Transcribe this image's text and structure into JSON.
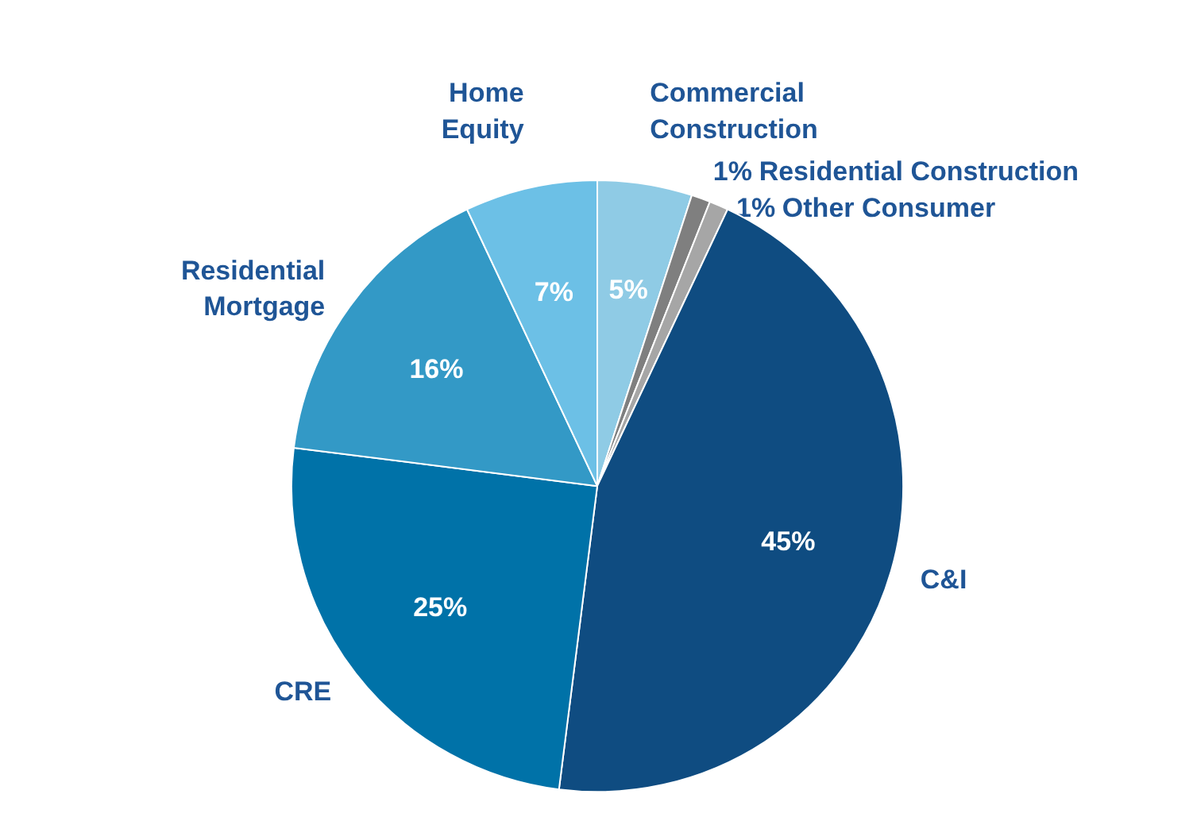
{
  "chart_data": {
    "type": "pie",
    "categories": [
      "Commercial Construction",
      "Residential Construction",
      "Other Consumer",
      "C&I",
      "CRE",
      "Residential Mortgage",
      "Home Equity"
    ],
    "values": [
      5,
      1,
      1,
      45,
      25,
      16,
      7
    ],
    "value_labels": [
      "5%",
      "1%",
      "1%",
      "45%",
      "25%",
      "16%",
      "7%"
    ],
    "colors": [
      "#8fcbe5",
      "#7f7f7f",
      "#a6a6a6",
      "#0f4c81",
      "#0072a8",
      "#3399c6",
      "#6cc0e6"
    ]
  }
}
